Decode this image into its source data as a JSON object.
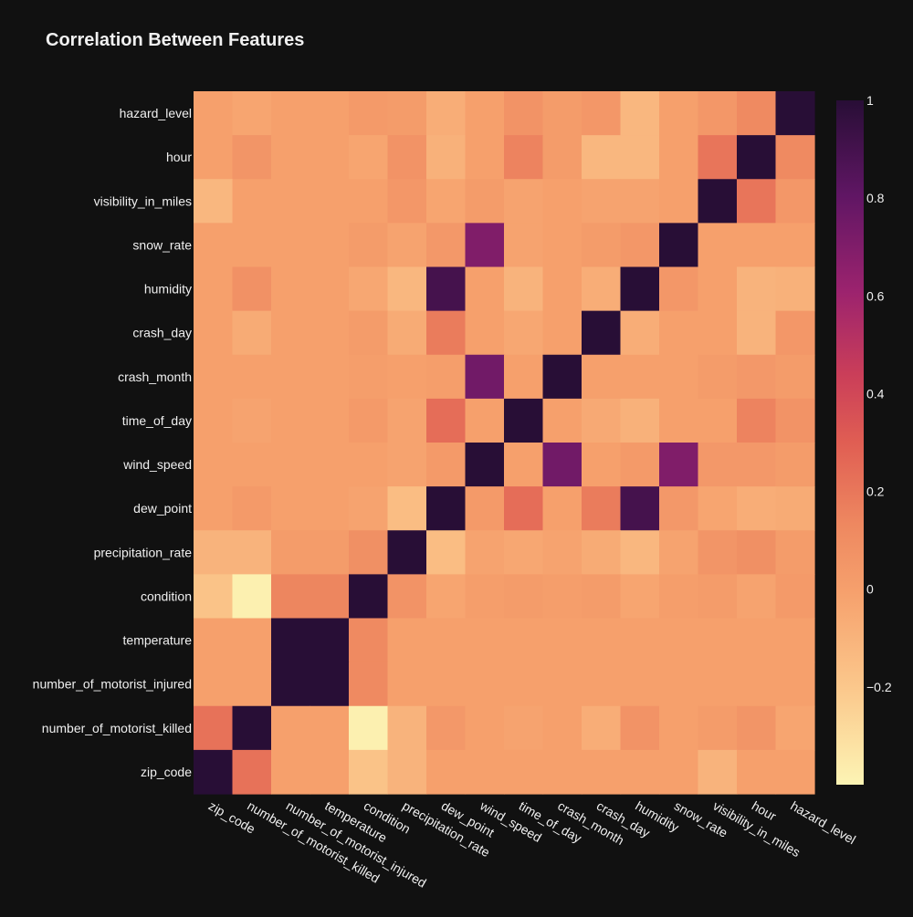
{
  "chart_data": {
    "type": "heatmap",
    "title": "Correlation Between Features",
    "x_labels": [
      "zip_code",
      "number_of_motorist_killed",
      "number_of_motorist_injured",
      "temperature",
      "condition",
      "precipitation_rate",
      "dew_point",
      "wind_speed",
      "time_of_day",
      "crash_month",
      "crash_day",
      "humidity",
      "snow_rate",
      "visibility_in_miles",
      "hour",
      "hazard_level"
    ],
    "y_labels": [
      "hazard_level",
      "hour",
      "visibility_in_miles",
      "snow_rate",
      "humidity",
      "crash_day",
      "crash_month",
      "time_of_day",
      "wind_speed",
      "dew_point",
      "precipitation_rate",
      "condition",
      "temperature",
      "number_of_motorist_injured",
      "number_of_motorist_killed",
      "zip_code"
    ],
    "z": [
      [
        0.0,
        -0.03,
        0.0,
        0.0,
        0.03,
        0.02,
        -0.07,
        0.0,
        0.07,
        0.02,
        0.05,
        -0.12,
        0.0,
        0.05,
        0.12,
        1.0
      ],
      [
        0.0,
        0.06,
        0.0,
        0.0,
        -0.03,
        0.07,
        -0.09,
        0.0,
        0.15,
        0.02,
        -0.12,
        -0.12,
        0.0,
        0.21,
        1.0,
        0.12
      ],
      [
        -0.12,
        0.0,
        0.0,
        0.0,
        0.0,
        0.05,
        -0.03,
        0.02,
        -0.02,
        0.0,
        -0.02,
        -0.02,
        0.0,
        1.0,
        0.21,
        0.05
      ],
      [
        0.0,
        0.0,
        0.0,
        0.0,
        0.02,
        -0.02,
        0.04,
        0.7,
        -0.02,
        0.0,
        0.02,
        0.05,
        1.0,
        0.0,
        0.0,
        0.0
      ],
      [
        0.0,
        0.08,
        0.0,
        0.0,
        -0.04,
        -0.12,
        0.9,
        0.0,
        -0.1,
        0.0,
        -0.07,
        1.0,
        0.05,
        0.0,
        -0.1,
        -0.09
      ],
      [
        0.0,
        -0.06,
        0.0,
        0.0,
        0.02,
        -0.06,
        0.18,
        0.0,
        -0.04,
        0.0,
        1.0,
        -0.07,
        0.0,
        0.0,
        -0.1,
        0.05
      ],
      [
        0.0,
        0.0,
        0.0,
        0.0,
        0.01,
        0.0,
        0.01,
        0.75,
        0.0,
        1.0,
        0.0,
        0.0,
        0.0,
        0.02,
        0.04,
        0.02
      ],
      [
        0.0,
        -0.02,
        0.0,
        0.0,
        0.03,
        -0.02,
        0.24,
        0.0,
        1.0,
        0.0,
        -0.05,
        -0.09,
        0.0,
        0.0,
        0.15,
        0.07
      ],
      [
        0.0,
        0.0,
        0.0,
        0.0,
        0.0,
        -0.02,
        0.03,
        1.0,
        0.0,
        0.75,
        0.0,
        0.03,
        0.7,
        0.04,
        0.04,
        0.02
      ],
      [
        0.0,
        0.03,
        0.0,
        0.0,
        -0.02,
        -0.15,
        1.0,
        0.03,
        0.24,
        0.0,
        0.18,
        0.9,
        0.04,
        -0.03,
        -0.07,
        -0.06
      ],
      [
        -0.1,
        -0.1,
        0.02,
        0.02,
        0.09,
        1.0,
        -0.15,
        -0.02,
        -0.04,
        -0.02,
        -0.06,
        -0.12,
        -0.02,
        0.06,
        0.09,
        0.02
      ],
      [
        -0.18,
        -0.38,
        0.14,
        0.14,
        1.0,
        0.07,
        -0.03,
        0.01,
        0.02,
        0.01,
        0.02,
        -0.03,
        0.01,
        0.02,
        -0.02,
        0.03
      ],
      [
        0.0,
        0.0,
        1.0,
        1.0,
        0.12,
        0.0,
        0.0,
        0.0,
        0.0,
        0.0,
        0.0,
        0.0,
        0.0,
        0.0,
        0.0,
        0.0
      ],
      [
        0.0,
        0.0,
        1.0,
        1.0,
        0.12,
        0.0,
        0.0,
        0.0,
        0.0,
        0.0,
        0.0,
        0.0,
        0.0,
        0.0,
        0.0,
        0.0
      ],
      [
        0.22,
        1.0,
        0.0,
        0.0,
        -0.38,
        -0.1,
        0.04,
        0.0,
        -0.02,
        0.0,
        -0.07,
        0.07,
        0.0,
        0.02,
        0.06,
        -0.03
      ],
      [
        1.0,
        0.22,
        0.0,
        0.0,
        -0.18,
        -0.1,
        0.0,
        0.0,
        0.0,
        0.0,
        0.0,
        0.0,
        0.0,
        -0.1,
        0.0,
        0.0
      ]
    ],
    "zmin": -0.4,
    "zmax": 1.0,
    "colorscale": "magma-like (light yellow low → dark purple high)",
    "colorbar_ticks": [
      1,
      0.8,
      0.6,
      0.4,
      0.2,
      0,
      -0.2
    ],
    "colorbar_tick_labels": [
      "1",
      "0.8",
      "0.6",
      "0.4",
      "0.2",
      "0",
      "−0.2"
    ],
    "background": "#111111"
  }
}
